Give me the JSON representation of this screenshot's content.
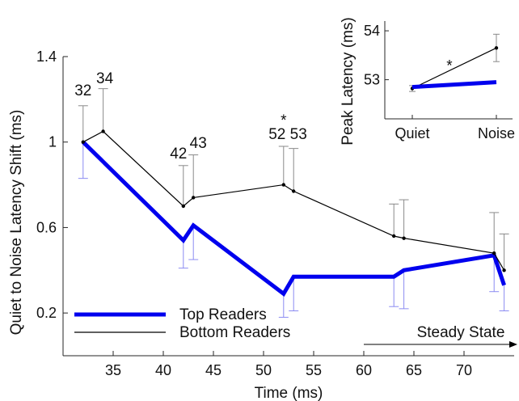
{
  "chart_data": [
    {
      "type": "line",
      "title": "",
      "xlabel": "Time (ms)",
      "ylabel": "Quiet to Noise Latency Shift (ms)",
      "xlim": [
        30,
        75
      ],
      "ylim": [
        0.0,
        1.4
      ],
      "xticks": [
        "35",
        "40",
        "45",
        "50",
        "55",
        "60",
        "65",
        "70"
      ],
      "yticks": [
        "0.2",
        "0.6",
        "1",
        "1.4"
      ],
      "grid": false,
      "legend_position": "bottom-left",
      "series": [
        {
          "name": "Top Readers",
          "color": "#0000ee",
          "x": [
            32,
            42,
            43,
            52,
            53,
            63,
            64,
            73,
            74
          ],
          "y": [
            1.0,
            0.54,
            0.61,
            0.29,
            0.37,
            0.37,
            0.4,
            0.47,
            0.33
          ],
          "error_low": [
            0.17,
            0.13,
            0.16,
            0.11,
            0.16,
            0.14,
            0.18,
            0.17,
            0.12
          ]
        },
        {
          "name": "Bottom Readers",
          "color": "#000000",
          "x": [
            32,
            34,
            42,
            43,
            52,
            53,
            63,
            64,
            73,
            74
          ],
          "y": [
            1.0,
            1.05,
            0.7,
            0.74,
            0.8,
            0.77,
            0.56,
            0.55,
            0.48,
            0.4
          ],
          "error_high": [
            0.17,
            0.2,
            0.19,
            0.2,
            0.18,
            0.2,
            0.15,
            0.18,
            0.19,
            0.17
          ]
        }
      ],
      "annotations": {
        "peak_labels": [
          {
            "text": "32",
            "x": 32
          },
          {
            "text": "34",
            "x": 34
          },
          {
            "text": "42",
            "x": 42
          },
          {
            "text": "43",
            "x": 43
          },
          {
            "text": "52",
            "x": 52
          },
          {
            "text": "53",
            "x": 53
          }
        ],
        "significance_marker": "*",
        "steady_state_label": "Steady State"
      }
    },
    {
      "type": "line",
      "title": "",
      "xlabel": "",
      "ylabel": "Peak Latency (ms)",
      "categories": [
        "Quiet",
        "Noise"
      ],
      "ylim": [
        52.2,
        54.2
      ],
      "yticks": [
        "53",
        "54"
      ],
      "grid": false,
      "significance_marker": "*",
      "series": [
        {
          "name": "Top Readers",
          "color": "#0000ee",
          "values": [
            52.85,
            52.95
          ],
          "error": [
            0.03,
            0.03
          ]
        },
        {
          "name": "Bottom Readers",
          "color": "#000000",
          "values": [
            52.82,
            53.65
          ],
          "error": [
            0.06,
            0.28
          ]
        }
      ]
    }
  ]
}
